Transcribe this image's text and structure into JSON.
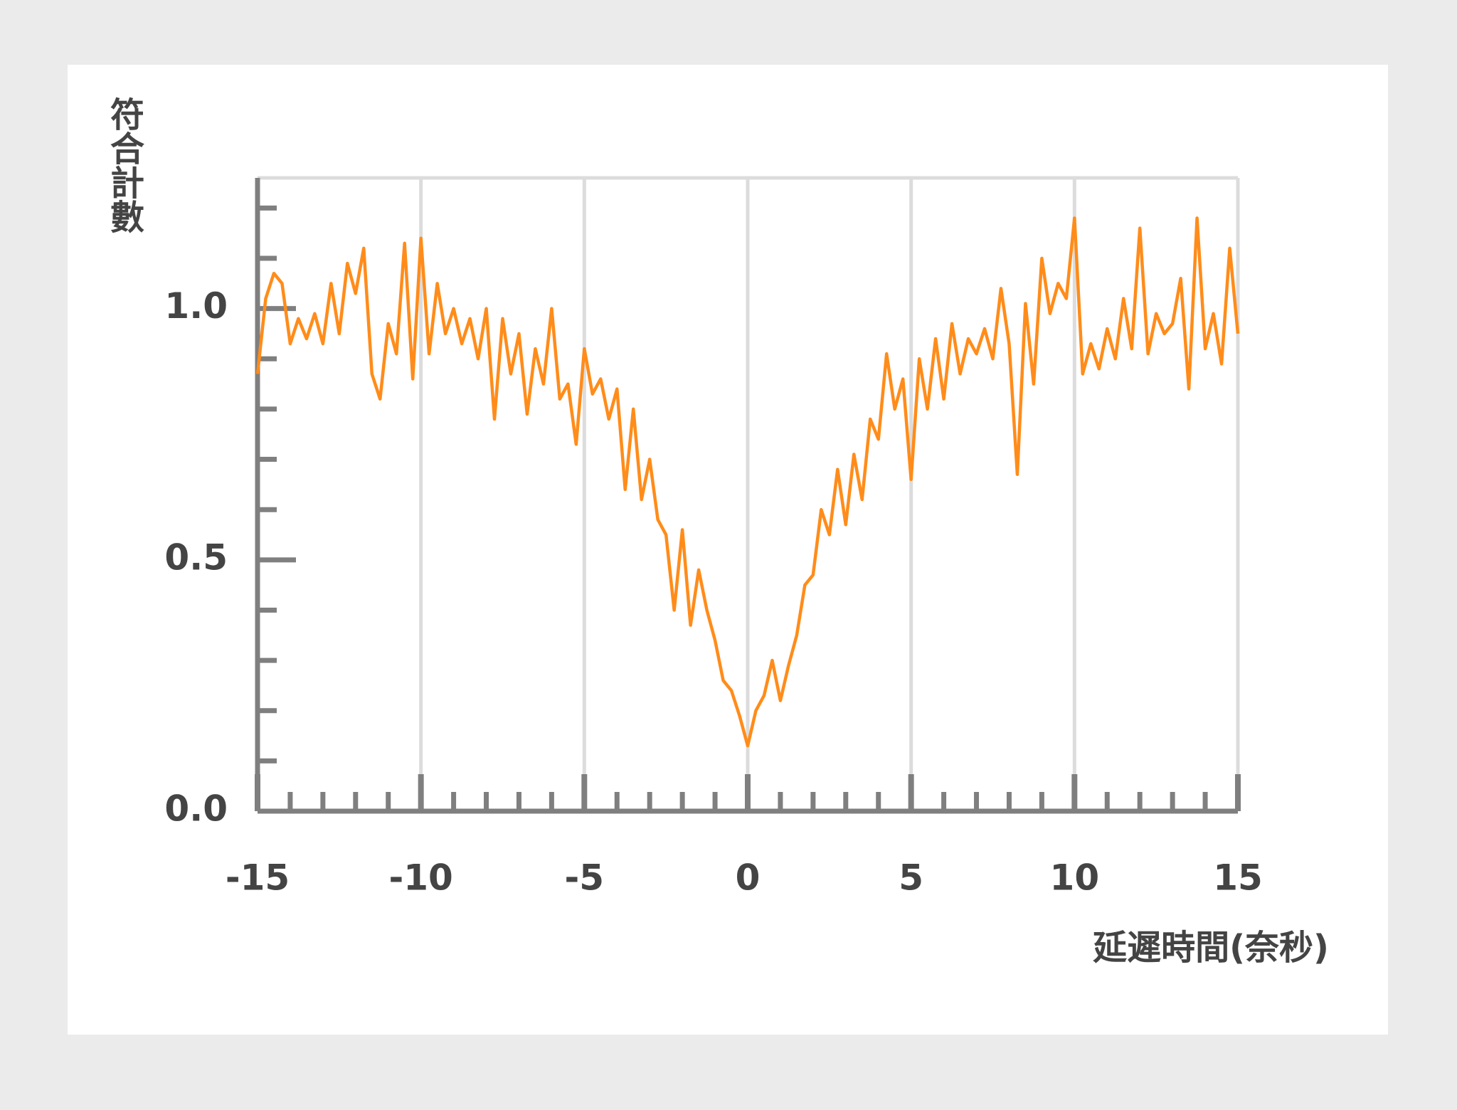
{
  "chart_data": {
    "type": "line",
    "x_label": "延遲時間(奈秒)",
    "y_label": "符合計數",
    "x": [
      -15,
      -14.75,
      -14.5,
      -14.25,
      -14,
      -13.75,
      -13.5,
      -13.25,
      -13,
      -12.75,
      -12.5,
      -12.25,
      -12,
      -11.75,
      -11.5,
      -11.25,
      -11,
      -10.75,
      -10.5,
      -10.25,
      -10,
      -9.75,
      -9.5,
      -9.25,
      -9,
      -8.75,
      -8.5,
      -8.25,
      -8,
      -7.75,
      -7.5,
      -7.25,
      -7,
      -6.75,
      -6.5,
      -6.25,
      -6,
      -5.75,
      -5.5,
      -5.25,
      -5,
      -4.75,
      -4.5,
      -4.25,
      -4,
      -3.75,
      -3.5,
      -3.25,
      -3,
      -2.75,
      -2.5,
      -2.25,
      -2,
      -1.75,
      -1.5,
      -1.25,
      -1,
      -0.75,
      -0.5,
      -0.25,
      0,
      0.25,
      0.5,
      0.75,
      1,
      1.25,
      1.5,
      1.75,
      2,
      2.25,
      2.5,
      2.75,
      3,
      3.25,
      3.5,
      3.75,
      4,
      4.25,
      4.5,
      4.75,
      5,
      5.25,
      5.5,
      5.75,
      6,
      6.25,
      6.5,
      6.75,
      7,
      7.25,
      7.5,
      7.75,
      8,
      8.25,
      8.5,
      8.75,
      9,
      9.25,
      9.5,
      9.75,
      10,
      10.25,
      10.5,
      10.75,
      11,
      11.25,
      11.5,
      11.75,
      12,
      12.25,
      12.5,
      12.75,
      13,
      13.25,
      13.5,
      13.75,
      14,
      14.25,
      14.5,
      14.75,
      15
    ],
    "series": [
      {
        "color": "#ff8c1a",
        "values": [
          0.87,
          1.02,
          1.07,
          1.05,
          0.93,
          0.98,
          0.94,
          0.99,
          0.93,
          1.05,
          0.95,
          1.09,
          1.03,
          1.12,
          0.87,
          0.82,
          0.97,
          0.91,
          1.13,
          0.86,
          1.14,
          0.91,
          1.05,
          0.95,
          1.0,
          0.93,
          0.98,
          0.9,
          1.0,
          0.78,
          0.98,
          0.87,
          0.95,
          0.79,
          0.92,
          0.85,
          1.0,
          0.82,
          0.85,
          0.73,
          0.92,
          0.83,
          0.86,
          0.78,
          0.84,
          0.64,
          0.8,
          0.62,
          0.7,
          0.58,
          0.55,
          0.4,
          0.56,
          0.37,
          0.48,
          0.4,
          0.34,
          0.26,
          0.24,
          0.19,
          0.13,
          0.2,
          0.23,
          0.3,
          0.22,
          0.29,
          0.35,
          0.45,
          0.47,
          0.6,
          0.55,
          0.68,
          0.57,
          0.71,
          0.62,
          0.78,
          0.74,
          0.91,
          0.8,
          0.86,
          0.66,
          0.9,
          0.8,
          0.94,
          0.82,
          0.97,
          0.87,
          0.94,
          0.91,
          0.96,
          0.9,
          1.04,
          0.93,
          0.67,
          1.01,
          0.85,
          1.1,
          0.99,
          1.05,
          1.02,
          1.18,
          0.87,
          0.93,
          0.88,
          0.96,
          0.9,
          1.02,
          0.92,
          1.16,
          0.91,
          0.99,
          0.95,
          0.97,
          1.06,
          0.84,
          1.18,
          0.92,
          0.99,
          0.89,
          1.12,
          0.95
        ]
      }
    ],
    "xlim": [
      -15,
      15
    ],
    "ylim": [
      0,
      1.26
    ],
    "xticks": [
      -15,
      -10,
      -5,
      0,
      5,
      10,
      15
    ],
    "yticks": [
      {
        "value": 0,
        "label": "0.0"
      },
      0.5,
      {
        "value": 1,
        "label": "1.0"
      }
    ],
    "x_minor_ticks": [
      -14,
      -13,
      -12,
      -11,
      -9,
      -8,
      -7,
      -6,
      -4,
      -3,
      -2,
      -1,
      1,
      2,
      3,
      4,
      6,
      7,
      8,
      9,
      11,
      12,
      13,
      14
    ],
    "y_minor_ticks": [
      0.1,
      0.2,
      0.3,
      0.4,
      0.6,
      0.7,
      0.8,
      0.9,
      1.1,
      1.2
    ],
    "grid": true
  }
}
